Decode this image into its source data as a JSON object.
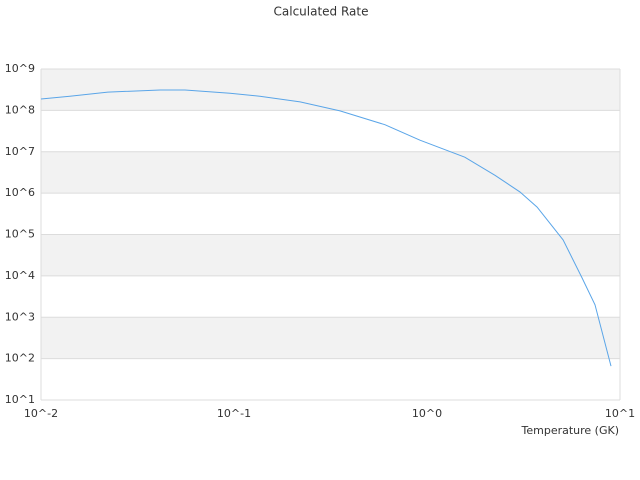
{
  "chart_data": {
    "type": "line",
    "title": "Calculated Rate",
    "x_label": "Temperature (GK)",
    "log_x": true,
    "log_y": true,
    "grid": "alternating-bands",
    "xlim": [
      0.01,
      10
    ],
    "xticks": [
      {
        "value": 0.01,
        "label": "10^-2"
      },
      {
        "value": 0.1,
        "label": "10^-1"
      },
      {
        "value": 1,
        "label": "10^0"
      },
      {
        "value": 10,
        "label": "10^1"
      }
    ],
    "ylim": [
      10,
      1000000000
    ],
    "yticks": [
      {
        "value": 10,
        "label": "10^1"
      },
      {
        "value": 100,
        "label": "10^2"
      },
      {
        "value": 1000,
        "label": "10^3"
      },
      {
        "value": 10000,
        "label": "10^4"
      },
      {
        "value": 100000,
        "label": "10^5"
      },
      {
        "value": 1000000,
        "label": "10^6"
      },
      {
        "value": 10000000,
        "label": "10^7"
      },
      {
        "value": 100000000,
        "label": "10^8"
      },
      {
        "value": 1000000000,
        "label": "10^9"
      }
    ],
    "x": [
      0.01,
      0.0141,
      0.0222,
      0.0414,
      0.0557,
      0.0953,
      0.136,
      0.22,
      0.354,
      0.605,
      0.92,
      1.57,
      2.25,
      3.03,
      3.72,
      5.07,
      6.36,
      7.42,
      8.98
    ],
    "series": [
      {
        "color": "#5aa5e8",
        "values": [
          188000000,
          220000000,
          276000000,
          310000000,
          310000000,
          260000000,
          220000000,
          160000000,
          97000000,
          45000000,
          19000000,
          7400000,
          2700000,
          1070000,
          460000,
          74000,
          8900,
          2000,
          66
        ]
      }
    ]
  }
}
